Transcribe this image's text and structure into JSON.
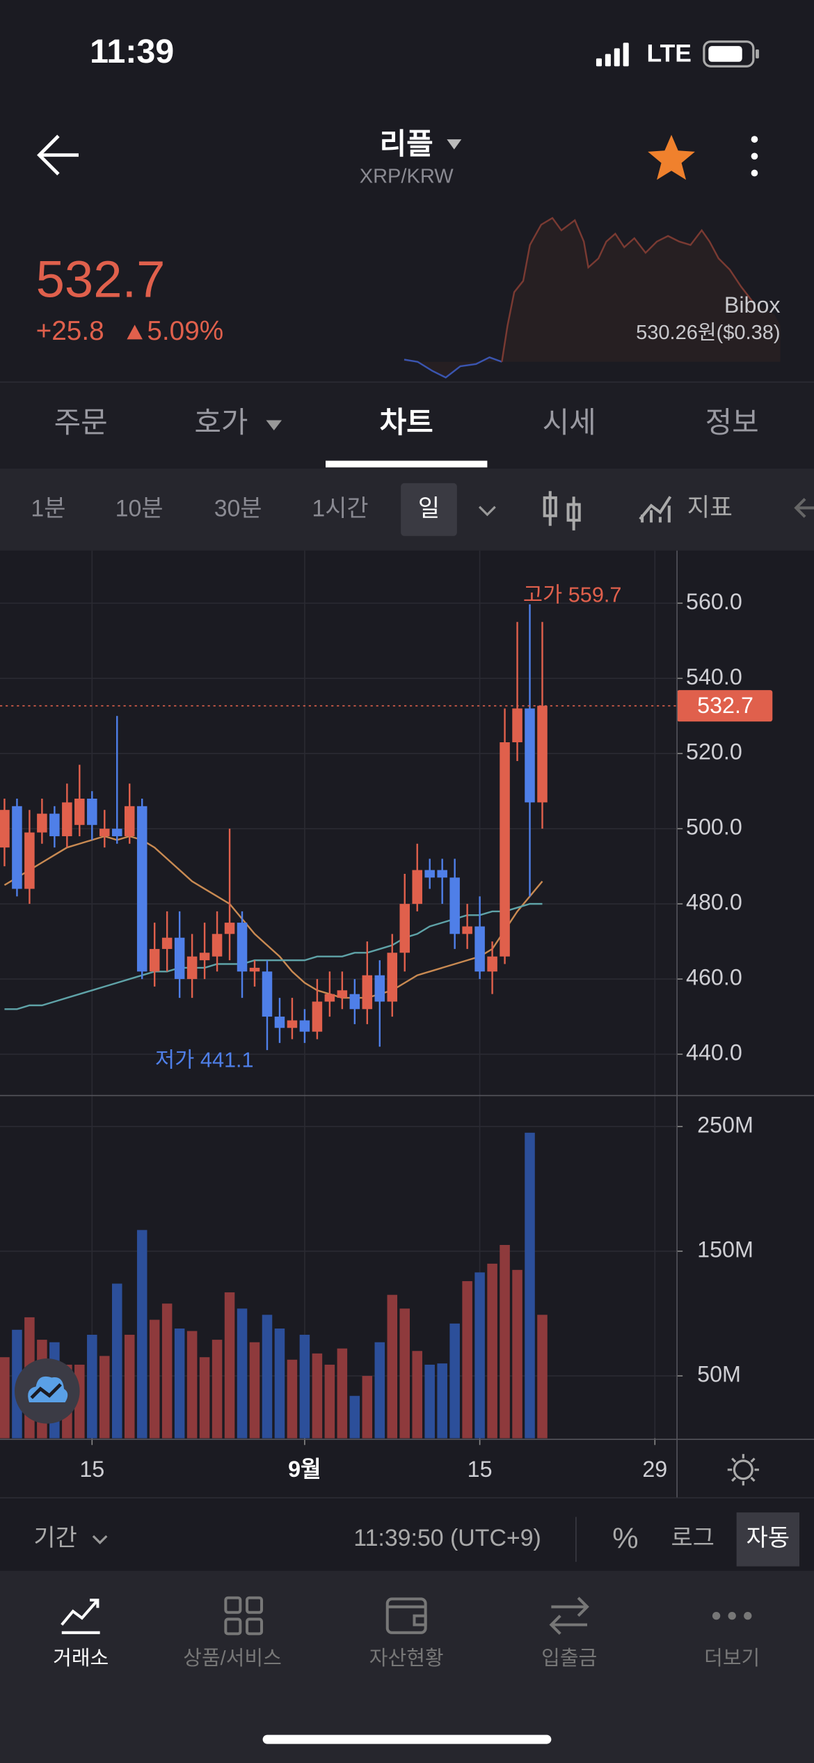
{
  "status_bar": {
    "time": "11:39",
    "network": "LTE"
  },
  "header": {
    "title": "리플",
    "pair": "XRP/KRW"
  },
  "price": {
    "last": "532.7",
    "change": "+25.8",
    "change_pct": "5.09%",
    "exchange": "Bibox",
    "exchange_price": "530.26원($0.38)"
  },
  "tabs": {
    "items": [
      "주문",
      "호가",
      "차트",
      "시세",
      "정보"
    ],
    "active": 2
  },
  "intervals": {
    "items": [
      "1분",
      "10분",
      "30분",
      "1시간",
      "일"
    ],
    "active": 4,
    "indicator": "지표"
  },
  "chart_data": {
    "type": "candlestick",
    "open": [
      495,
      506,
      484,
      499,
      504,
      498,
      501,
      508,
      498,
      500,
      498,
      506,
      462,
      468,
      471,
      460,
      465,
      466,
      472,
      475,
      462,
      462,
      450,
      447,
      449,
      446,
      454,
      455,
      456,
      452,
      461,
      454,
      467,
      480,
      489,
      489,
      487,
      472,
      474,
      462,
      466,
      523,
      532,
      507
    ],
    "high": [
      508,
      508,
      505,
      508,
      506,
      512,
      517,
      510,
      505,
      530,
      512,
      508,
      475,
      478,
      478,
      472,
      475,
      478,
      500,
      478,
      465,
      465,
      455,
      455,
      452,
      460,
      462,
      462,
      460,
      470,
      465,
      472,
      488,
      496,
      492,
      492,
      492,
      480,
      482,
      470,
      532,
      555,
      559.7,
      555
    ],
    "low": [
      490,
      482,
      480,
      496,
      495,
      495,
      498,
      497,
      495,
      496,
      496,
      460,
      458,
      462,
      455,
      455,
      460,
      462,
      465,
      455,
      458,
      441.1,
      443,
      444,
      443,
      444,
      450,
      452,
      448,
      448,
      442,
      450,
      462,
      478,
      484,
      480,
      468,
      468,
      460,
      456,
      464,
      518,
      482,
      500
    ],
    "close": [
      505,
      484,
      499,
      504,
      498,
      507,
      508,
      501,
      500,
      498,
      506,
      462,
      468,
      471,
      460,
      466,
      467,
      472,
      475,
      462,
      463,
      450,
      447,
      449,
      446,
      454,
      456,
      457,
      452,
      461,
      454,
      467,
      480,
      489,
      487,
      487,
      472,
      474,
      462,
      466,
      523,
      532,
      507,
      532.7
    ],
    "up_color": "#e0604c",
    "down_color": "#4f7fe8",
    "ylim": [
      429,
      574
    ],
    "yticks": [
      {
        "value": 440,
        "label": "440.0"
      },
      {
        "value": 460,
        "label": "460.0"
      },
      {
        "value": 480,
        "label": "480.0"
      },
      {
        "value": 500,
        "label": "500.0"
      },
      {
        "value": 520,
        "label": "520.0"
      },
      {
        "value": 540,
        "label": "540.0"
      },
      {
        "value": 560,
        "label": "560.0"
      }
    ],
    "last_price": 532.7,
    "annotations": [
      {
        "text": "고가 559.7",
        "index": 42,
        "value": 559.7,
        "color": "#e0604c"
      },
      {
        "text": "저가 441.1",
        "index": 21,
        "value": 441.1,
        "color": "#4f7fe8"
      }
    ],
    "moving_averages": [
      {
        "color": "#c98a52",
        "values": [
          485,
          487,
          489,
          491,
          493,
          495,
          496,
          497,
          498,
          497,
          498,
          497,
          495,
          492,
          489,
          486,
          484,
          482,
          480,
          476,
          472,
          469,
          466,
          462,
          459,
          457,
          456,
          455,
          455,
          455,
          456,
          457,
          459,
          461,
          462,
          463,
          464,
          465,
          466,
          468,
          473,
          478,
          482,
          486
        ]
      },
      {
        "color": "#5fa3a8",
        "values": [
          452,
          452,
          453,
          453,
          454,
          455,
          456,
          457,
          458,
          459,
          460,
          461,
          462,
          462,
          463,
          463,
          463,
          464,
          464,
          464,
          465,
          465,
          465,
          465,
          465,
          466,
          466,
          466,
          467,
          467,
          468,
          469,
          471,
          472,
          474,
          475,
          476,
          477,
          477,
          478,
          478,
          479,
          480,
          480
        ]
      }
    ],
    "volume": {
      "values": [
        65000000,
        87000000,
        97000000,
        79000000,
        77000000,
        59000000,
        59000000,
        83000000,
        66000000,
        124000000,
        83000000,
        167000000,
        95000000,
        108000000,
        88000000,
        86000000,
        65000000,
        79000000,
        117000000,
        104000000,
        77000000,
        99000000,
        88000000,
        63000000,
        83000000,
        68000000,
        59000000,
        72000000,
        34000000,
        50000000,
        77000000,
        115000000,
        104000000,
        70000000,
        59000000,
        60000000,
        92000000,
        126000000,
        133000000,
        140000000,
        155000000,
        135000000,
        245000000,
        99000000
      ],
      "up_color": "#8e3a3c",
      "down_color": "#2c4f9a",
      "ylim": [
        0,
        273000000
      ],
      "yticks": [
        {
          "value": 50000000,
          "label": "50M"
        },
        {
          "value": 150000000,
          "label": "150M"
        },
        {
          "value": 250000000,
          "label": "250M"
        }
      ]
    },
    "xticks": [
      {
        "value": 7,
        "label": "15"
      },
      {
        "value": 24,
        "label": "9월"
      },
      {
        "value": 38,
        "label": "15"
      },
      {
        "value": 52,
        "label": "29"
      }
    ],
    "grid": true
  },
  "footer": {
    "period": "기간",
    "time": "11:39:50 (UTC+9)",
    "percent": "%",
    "log": "로그",
    "auto": "자동"
  },
  "nav": {
    "items": [
      "거래소",
      "상품/서비스",
      "자산현황",
      "입출금",
      "더보기"
    ],
    "active": 0
  }
}
